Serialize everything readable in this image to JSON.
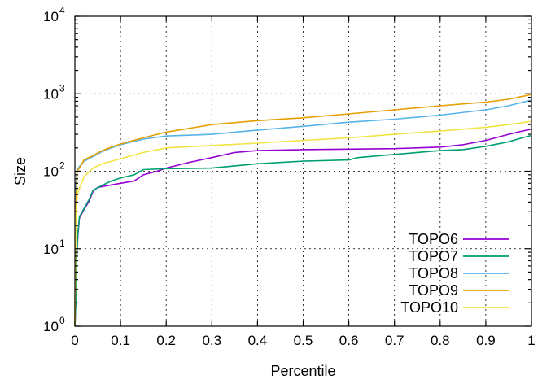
{
  "chart_data": {
    "type": "line",
    "title": "",
    "xlabel": "Percentile",
    "ylabel": "Size",
    "xlim": [
      0,
      1
    ],
    "ylim": [
      1,
      10000
    ],
    "yscale": "log",
    "grid": true,
    "legend_position": "bottom-right",
    "x_ticks": [
      "0",
      "0.1",
      "0.2",
      "0.3",
      "0.4",
      "0.5",
      "0.6",
      "0.7",
      "0.8",
      "0.9",
      "1"
    ],
    "y_ticks": [
      {
        "value": 1,
        "base": "10",
        "exp": "0"
      },
      {
        "value": 10,
        "base": "10",
        "exp": "1"
      },
      {
        "value": 100,
        "base": "10",
        "exp": "2"
      },
      {
        "value": 1000,
        "base": "10",
        "exp": "3"
      },
      {
        "value": 10000,
        "base": "10",
        "exp": "4"
      }
    ],
    "series": [
      {
        "name": "TOPO6",
        "color": "#9400d3",
        "points": [
          [
            0,
            1
          ],
          [
            0.002,
            2
          ],
          [
            0.004,
            8
          ],
          [
            0.007,
            16
          ],
          [
            0.01,
            25
          ],
          [
            0.02,
            32
          ],
          [
            0.03,
            40
          ],
          [
            0.04,
            55
          ],
          [
            0.05,
            62
          ],
          [
            0.07,
            65
          ],
          [
            0.1,
            70
          ],
          [
            0.13,
            75
          ],
          [
            0.15,
            90
          ],
          [
            0.18,
            100
          ],
          [
            0.2,
            110
          ],
          [
            0.25,
            130
          ],
          [
            0.3,
            150
          ],
          [
            0.35,
            175
          ],
          [
            0.4,
            185
          ],
          [
            0.5,
            190
          ],
          [
            0.6,
            193
          ],
          [
            0.7,
            196
          ],
          [
            0.8,
            205
          ],
          [
            0.85,
            220
          ],
          [
            0.9,
            250
          ],
          [
            0.95,
            300
          ],
          [
            0.98,
            330
          ],
          [
            1,
            350
          ]
        ]
      },
      {
        "name": "TOPO7",
        "color": "#009e73",
        "points": [
          [
            0,
            1
          ],
          [
            0.002,
            2
          ],
          [
            0.004,
            8
          ],
          [
            0.007,
            17
          ],
          [
            0.01,
            26
          ],
          [
            0.02,
            33
          ],
          [
            0.03,
            42
          ],
          [
            0.04,
            57
          ],
          [
            0.06,
            66
          ],
          [
            0.08,
            75
          ],
          [
            0.1,
            82
          ],
          [
            0.13,
            90
          ],
          [
            0.15,
            105
          ],
          [
            0.2,
            108
          ],
          [
            0.3,
            110
          ],
          [
            0.4,
            125
          ],
          [
            0.5,
            135
          ],
          [
            0.6,
            140
          ],
          [
            0.62,
            150
          ],
          [
            0.7,
            165
          ],
          [
            0.8,
            185
          ],
          [
            0.85,
            190
          ],
          [
            0.9,
            210
          ],
          [
            0.95,
            240
          ],
          [
            0.98,
            270
          ],
          [
            1,
            290
          ]
        ]
      },
      {
        "name": "TOPO8",
        "color": "#56b4e9",
        "points": [
          [
            0,
            1
          ],
          [
            0.002,
            60
          ],
          [
            0.005,
            105
          ],
          [
            0.01,
            115
          ],
          [
            0.02,
            135
          ],
          [
            0.04,
            155
          ],
          [
            0.06,
            180
          ],
          [
            0.08,
            200
          ],
          [
            0.1,
            220
          ],
          [
            0.15,
            260
          ],
          [
            0.2,
            285
          ],
          [
            0.3,
            300
          ],
          [
            0.4,
            340
          ],
          [
            0.5,
            380
          ],
          [
            0.6,
            430
          ],
          [
            0.7,
            470
          ],
          [
            0.8,
            530
          ],
          [
            0.9,
            620
          ],
          [
            0.95,
            700
          ],
          [
            1,
            830
          ]
        ]
      },
      {
        "name": "TOPO9",
        "color": "#e69f00",
        "points": [
          [
            0,
            1
          ],
          [
            0.002,
            30
          ],
          [
            0.005,
            100
          ],
          [
            0.01,
            110
          ],
          [
            0.02,
            140
          ],
          [
            0.04,
            160
          ],
          [
            0.06,
            185
          ],
          [
            0.08,
            205
          ],
          [
            0.1,
            225
          ],
          [
            0.15,
            270
          ],
          [
            0.2,
            320
          ],
          [
            0.3,
            400
          ],
          [
            0.4,
            450
          ],
          [
            0.5,
            490
          ],
          [
            0.6,
            550
          ],
          [
            0.7,
            620
          ],
          [
            0.8,
            700
          ],
          [
            0.9,
            780
          ],
          [
            0.95,
            850
          ],
          [
            1,
            980
          ]
        ]
      },
      {
        "name": "TOPO10",
        "color": "#f0e442",
        "points": [
          [
            0,
            1
          ],
          [
            0.002,
            25
          ],
          [
            0.005,
            50
          ],
          [
            0.01,
            60
          ],
          [
            0.02,
            85
          ],
          [
            0.04,
            110
          ],
          [
            0.06,
            125
          ],
          [
            0.1,
            145
          ],
          [
            0.15,
            175
          ],
          [
            0.2,
            200
          ],
          [
            0.3,
            215
          ],
          [
            0.4,
            230
          ],
          [
            0.5,
            250
          ],
          [
            0.6,
            270
          ],
          [
            0.7,
            300
          ],
          [
            0.8,
            330
          ],
          [
            0.9,
            370
          ],
          [
            0.95,
            400
          ],
          [
            1,
            440
          ]
        ]
      }
    ]
  }
}
